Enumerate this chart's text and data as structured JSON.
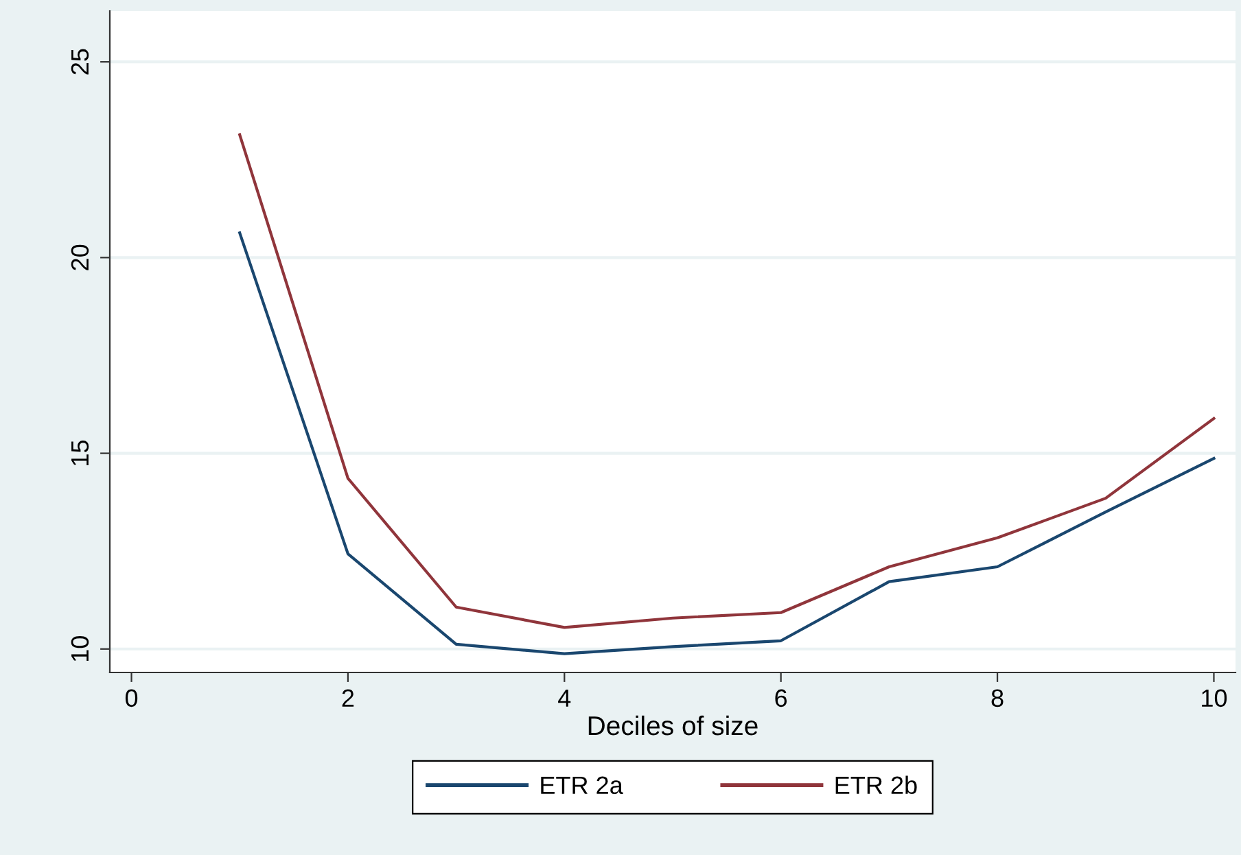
{
  "chart_data": {
    "type": "line",
    "xlabel": "Deciles of size",
    "x": [
      1,
      2,
      3,
      4,
      5,
      6,
      7,
      8,
      9,
      10
    ],
    "series": [
      {
        "name": "ETR 2a",
        "color": "#1a476f",
        "values": [
          20.63,
          12.43,
          10.12,
          9.88,
          10.06,
          10.21,
          11.72,
          12.1,
          13.5,
          14.87
        ]
      },
      {
        "name": "ETR 2b",
        "color": "#90353b",
        "values": [
          23.14,
          14.36,
          11.07,
          10.55,
          10.79,
          10.93,
          12.1,
          12.84,
          13.85,
          15.89
        ]
      }
    ],
    "xlim": [
      -0.2,
      10.2
    ],
    "ylim": [
      9.4,
      26.3
    ],
    "xticks": [
      0,
      2,
      4,
      6,
      8,
      10
    ],
    "yticks": [
      10,
      15,
      20,
      25
    ],
    "grid": "y",
    "legend": "bottom",
    "line_style": "solid",
    "marker": "none"
  }
}
